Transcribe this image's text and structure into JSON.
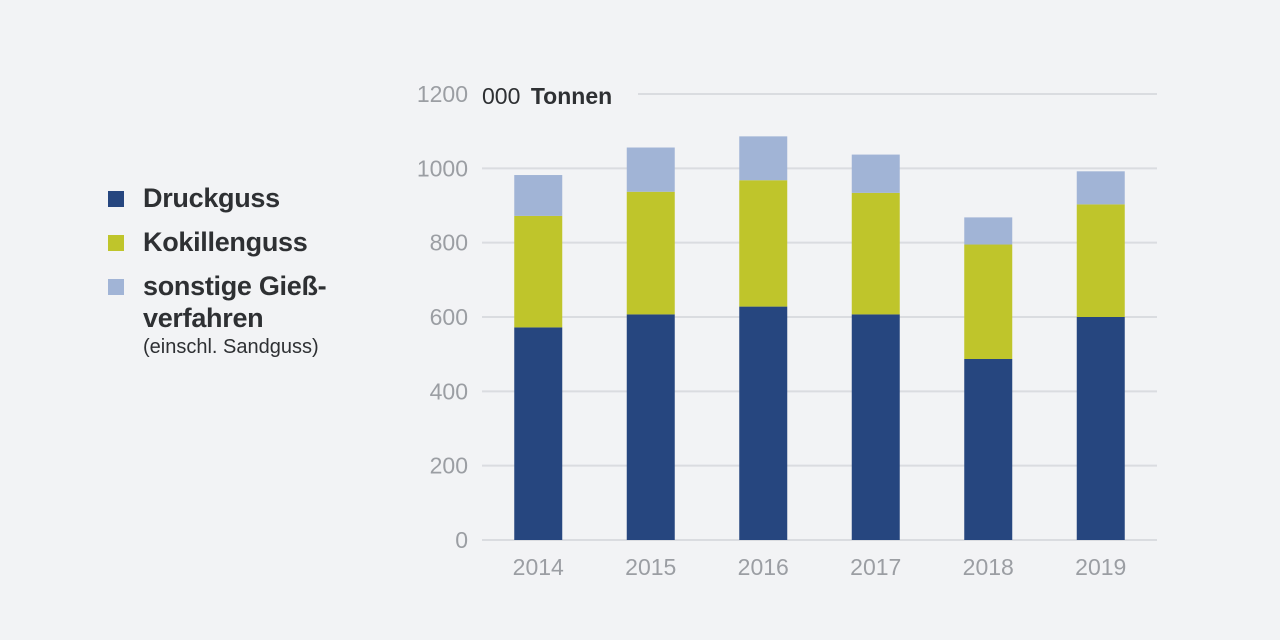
{
  "chart_data": {
    "type": "bar",
    "stacked": true,
    "unit": {
      "number": "000",
      "label": "Tonnen"
    },
    "categories": [
      "2014",
      "2015",
      "2016",
      "2017",
      "2018",
      "2019"
    ],
    "series": [
      {
        "name": "Druckguss",
        "color": "#26467f",
        "values": [
          572,
          607,
          628,
          607,
          487,
          600
        ]
      },
      {
        "name": "Kokillenguss",
        "color": "#bfc52b",
        "values": [
          300,
          330,
          340,
          327,
          308,
          303
        ]
      },
      {
        "name": "sonstige Gieß-\nverfahren",
        "note": "(einschl. Sandguss)",
        "color": "#a1b4d6",
        "values": [
          110,
          119,
          118,
          103,
          73,
          89
        ]
      }
    ],
    "yticks": [
      "0",
      "200",
      "400",
      "600",
      "800",
      "1000",
      "1200"
    ],
    "ylim": [
      0,
      1200
    ],
    "grid": true,
    "legend": "left"
  }
}
